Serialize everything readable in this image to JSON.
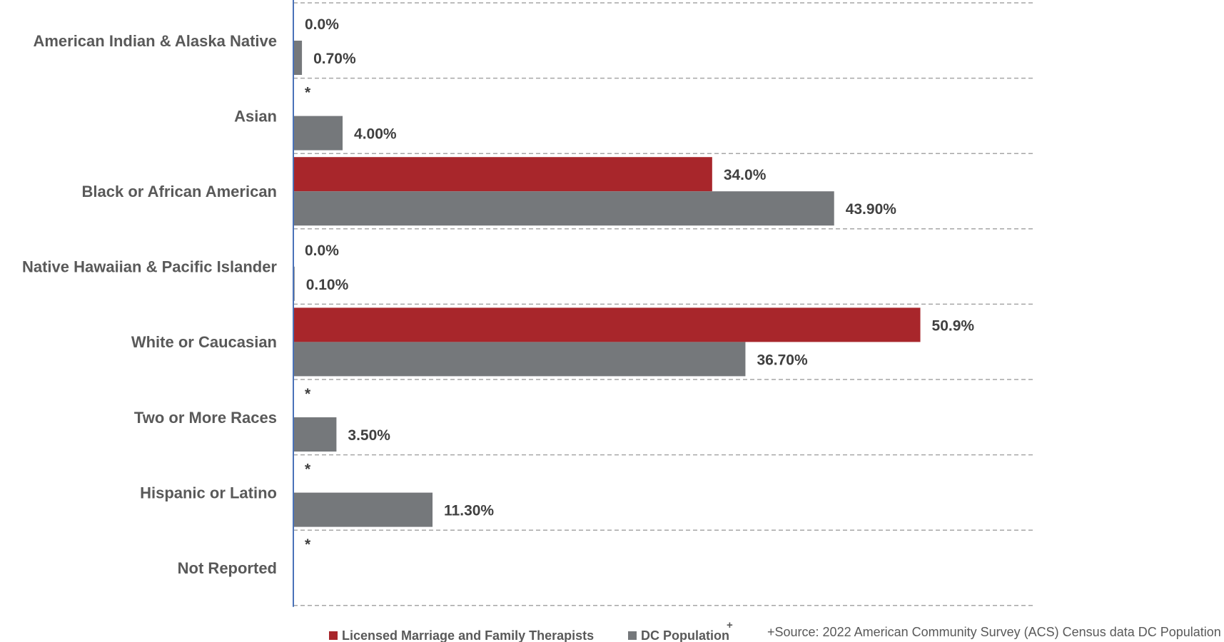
{
  "chart_data": {
    "type": "bar",
    "orientation": "horizontal",
    "categories": [
      "American Indian & Alaska Native",
      "Asian",
      "Black or African American",
      "Native Hawaiian & Pacific Islander",
      "White or Caucasian",
      "Two or More Races",
      "Hispanic or Latino",
      "Not Reported"
    ],
    "series": [
      {
        "name": "Licensed Marriage and Family Therapists",
        "color": "#A8262B",
        "values": [
          0.0,
          null,
          34.0,
          0.0,
          50.9,
          null,
          null,
          null
        ],
        "labels": [
          "0.0%",
          "*",
          "34.0%",
          "0.0%",
          "50.9%",
          "*",
          "*",
          "*"
        ]
      },
      {
        "name": "DC Population",
        "color": "#75787B",
        "values": [
          0.7,
          4.0,
          43.9,
          0.1,
          36.7,
          3.5,
          11.3,
          null
        ],
        "labels": [
          "0.70%",
          "4.00%",
          "43.90%",
          "0.10%",
          "36.70%",
          "3.50%",
          "11.30%",
          ""
        ]
      }
    ],
    "xlim": [
      0,
      60
    ],
    "grid": "horizontal dashed separators between categories",
    "legend": {
      "position": "bottom",
      "items": [
        {
          "label": "Licensed Marriage and Family Therapists",
          "color": "#A8262B",
          "superscript": ""
        },
        {
          "label": "DC Population",
          "color": "#75787B",
          "superscript": "+"
        }
      ]
    },
    "footnote": "+Source: 2022 American Community Survey (ACS) Census data DC Population"
  }
}
